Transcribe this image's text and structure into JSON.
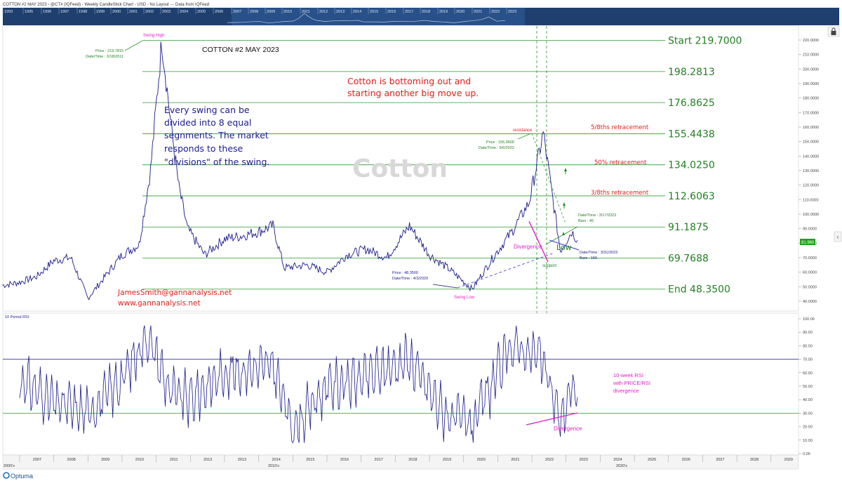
{
  "window": {
    "title": "COTTON #2 MAY 2023 - @CT# (IQFeed) - Weekly CandleStick Chart - USD - No Layout --- Data from IQFeed",
    "brand": "Optuma"
  },
  "navigator": {
    "years": [
      "1993",
      "1995",
      "1996",
      "1997",
      "1998",
      "1999",
      "2000",
      "2001",
      "2002",
      "2003",
      "2004",
      "2005",
      "2006",
      "2007",
      "2008",
      "2009",
      "2010",
      "2011",
      "2012",
      "2013",
      "2014",
      "2015",
      "2016",
      "2017",
      "2018",
      "2019",
      "2020",
      "2021",
      "2022",
      "2023"
    ]
  },
  "price_panel": {
    "title": "COTTON #2 MAY 2023",
    "watermark": "Cotton",
    "last_price_label": "81.960",
    "ylim": [
      35,
      230
    ],
    "yticks": [
      "220.0000",
      "210.0000",
      "200.0000",
      "190.0000",
      "180.0000",
      "170.0000",
      "160.0000",
      "150.0000",
      "140.0000",
      "130.0000",
      "120.0000",
      "110.0000",
      "100.0000",
      "90.0000",
      "80.0000",
      "70.0000",
      "60.0000",
      "50.0000",
      "40.0000"
    ],
    "annotations": {
      "headline": [
        "Cotton is bottoming out and",
        "starting another big move up."
      ],
      "swing_note": [
        "Every swing can be",
        "divided into 8 equal",
        "segnments.  The market",
        "responds to these",
        "\"divisions\" of the swing."
      ],
      "contact": [
        "JamesSmith@gannanalysis.net",
        "www.gannanalysis.net"
      ],
      "swing_high": "Swing High",
      "swing_high_info": [
        "Price : 219.7815",
        "Date/Time : 3/18/2011"
      ],
      "swing_low": "Swing Low",
      "swing_low_info": [
        "Price : 48.3500",
        "Date/Time : 4/3/2020"
      ],
      "resistance": "resistance",
      "resistance_info": [
        "Price : 155.9500",
        "Date/Time : 5/6/2022"
      ],
      "support": "support",
      "divergence": "Divergence",
      "low": "Low",
      "bars_a": [
        "Date/Time : 3/17/2023",
        "Bars  :  45"
      ],
      "bars_b": [
        "Date/Time : 3/31/2023",
        "Bars  :  156"
      ],
      "ret_58": "5/8ths retracement",
      "ret_50": "50% retracement",
      "ret_38": "3/8ths retracement"
    },
    "levels": [
      {
        "value": 219.7,
        "label": "Start 219.7000"
      },
      {
        "value": 198.2813,
        "label": "198.2813"
      },
      {
        "value": 176.8625,
        "label": "176.8625"
      },
      {
        "value": 155.4438,
        "label": "155.4438"
      },
      {
        "value": 134.025,
        "label": "134.0250"
      },
      {
        "value": 112.6063,
        "label": "112.6063"
      },
      {
        "value": 91.1875,
        "label": "91.1875"
      },
      {
        "value": 69.7688,
        "label": "69.7688"
      },
      {
        "value": 48.35,
        "label": "End 48.3500"
      }
    ]
  },
  "rsi_panel": {
    "title": "10 Period RSI",
    "ylim": [
      0,
      100
    ],
    "yticks": [
      "100.00",
      "90.00",
      "80.00",
      "70.00",
      "60.00",
      "50.00",
      "40.00",
      "30.00",
      "20.00",
      "10.00",
      "0.00"
    ],
    "note": [
      "10-week RSI",
      "with PRICE/RSI",
      "divergence"
    ],
    "divergence": "Divergence"
  },
  "time_axis": {
    "years": [
      "2007",
      "2008",
      "2009",
      "2010",
      "2011",
      "2012",
      "2013",
      "2014",
      "2015",
      "2016",
      "2017",
      "2018",
      "2019",
      "2020",
      "2021",
      "2022",
      "2023",
      "2024",
      "2025",
      "2026",
      "2027",
      "2028",
      "2029"
    ],
    "decades": [
      "2000's",
      "2010's",
      "2020's"
    ]
  },
  "colors": {
    "price_line": "#1a1a8c",
    "level_line": "#2e9b2e",
    "level_text": "#238023",
    "annotation_red": "#e0201c",
    "magenta": "#e020c8",
    "navigator_bg": "#1f3f6e",
    "last_price_bg": "#1aa31a"
  },
  "chart_data": {
    "type": "line",
    "title": "COTTON #2 MAY 2023",
    "series": [
      {
        "x": [
          "2006-07",
          "2007-01",
          "2007-07",
          "2008-01",
          "2008-07",
          "2009-01",
          "2009-07",
          "2010-01",
          "2010-07",
          "2010-11",
          "2011-03",
          "2011-06",
          "2011-09",
          "2011-12",
          "2012-06",
          "2013-01",
          "2013-07",
          "2014-01",
          "2014-06",
          "2014-10",
          "2015-06",
          "2016-01",
          "2016-08",
          "2017-03",
          "2017-10",
          "2018-06",
          "2019-01",
          "2019-08",
          "2020-04",
          "2020-12",
          "2021-06",
          "2021-12",
          "2022-05",
          "2022-08",
          "2022-11",
          "2023-03",
          "2023-05"
        ],
        "values": [
          51,
          53,
          57,
          68,
          70,
          42,
          57,
          72,
          79,
          130,
          219.78,
          165,
          118,
          90,
          72,
          83,
          85,
          88,
          92,
          63,
          65,
          60,
          72,
          76,
          70,
          92,
          72,
          62,
          48.35,
          72,
          88,
          108,
          155.95,
          115,
          75,
          88,
          82
        ]
      }
    ],
    "rsi": {
      "name": "10 Period RSI",
      "x": [
        "2007-01",
        "2008-01",
        "2009-01",
        "2010-01",
        "2010-10",
        "2011-06",
        "2012-01",
        "2013-01",
        "2014-06",
        "2015-01",
        "2016-01",
        "2017-01",
        "2018-06",
        "2019-06",
        "2020-04",
        "2021-06",
        "2022-04",
        "2022-11",
        "2023-03",
        "2023-05"
      ],
      "values": [
        55,
        38,
        30,
        55,
        88,
        45,
        40,
        60,
        65,
        18,
        50,
        55,
        70,
        30,
        22,
        80,
        72,
        25,
        48,
        42
      ]
    },
    "xlim": [
      "2006-07",
      "2029-12"
    ],
    "ylim": [
      35,
      230
    ],
    "grid": false,
    "legend": "none"
  }
}
